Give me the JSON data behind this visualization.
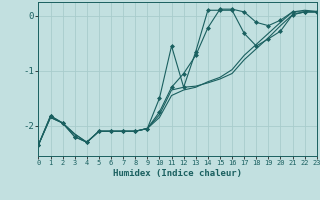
{
  "xlabel": "Humidex (Indice chaleur)",
  "background_color": "#c2e0e0",
  "grid_color": "#a8cccc",
  "line_color": "#1a6060",
  "xlim": [
    0,
    23
  ],
  "ylim": [
    -2.55,
    0.25
  ],
  "yticks": [
    0,
    -1,
    -2
  ],
  "xticks": [
    0,
    1,
    2,
    3,
    4,
    5,
    6,
    7,
    8,
    9,
    10,
    11,
    12,
    13,
    14,
    15,
    16,
    17,
    18,
    19,
    20,
    21,
    22,
    23
  ],
  "lines": [
    {
      "x": [
        0,
        1,
        2,
        3,
        4,
        5,
        6,
        7,
        8,
        9,
        10,
        11,
        12,
        13,
        14,
        15,
        16,
        17,
        18,
        19,
        20,
        21,
        22,
        23
      ],
      "y": [
        -2.35,
        -1.85,
        -1.95,
        -2.15,
        -2.3,
        -2.1,
        -2.1,
        -2.1,
        -2.1,
        -2.05,
        -1.8,
        -1.35,
        -1.3,
        -1.28,
        -1.22,
        -1.15,
        -1.05,
        -0.8,
        -0.6,
        -0.4,
        -0.18,
        0.02,
        0.07,
        0.07
      ],
      "marker": false
    },
    {
      "x": [
        0,
        1,
        2,
        3,
        4,
        5,
        6,
        7,
        8,
        9,
        10,
        11,
        12,
        13,
        14,
        15,
        16,
        17,
        18,
        19,
        20,
        21,
        22,
        23
      ],
      "y": [
        -2.35,
        -1.85,
        -1.95,
        -2.15,
        -2.3,
        -2.1,
        -2.1,
        -2.1,
        -2.1,
        -2.05,
        -1.85,
        -1.45,
        -1.35,
        -1.3,
        -1.2,
        -1.12,
        -0.98,
        -0.72,
        -0.52,
        -0.32,
        -0.12,
        0.07,
        0.1,
        0.08
      ],
      "marker": false
    },
    {
      "x": [
        0,
        1,
        2,
        3,
        4,
        5,
        6,
        7,
        8,
        9,
        10,
        11,
        12,
        13,
        14,
        15,
        16,
        17,
        18,
        19,
        20,
        21,
        22,
        23
      ],
      "y": [
        -2.35,
        -1.82,
        -1.95,
        -2.2,
        -2.3,
        -2.1,
        -2.1,
        -2.1,
        -2.1,
        -2.05,
        -1.5,
        -0.55,
        -1.3,
        -0.65,
        0.1,
        0.1,
        0.1,
        -0.32,
        -0.55,
        -0.42,
        -0.28,
        0.02,
        0.07,
        0.07
      ],
      "marker": true
    },
    {
      "x": [
        0,
        1,
        2,
        3,
        4,
        5,
        6,
        7,
        8,
        9,
        10,
        11,
        12,
        13,
        14,
        15,
        16,
        17,
        18,
        19,
        20,
        21,
        22,
        23
      ],
      "y": [
        -2.35,
        -1.82,
        -1.95,
        -2.2,
        -2.3,
        -2.1,
        -2.1,
        -2.1,
        -2.1,
        -2.05,
        -1.75,
        -1.3,
        -1.05,
        -0.72,
        -0.22,
        0.12,
        0.12,
        0.07,
        -0.12,
        -0.18,
        -0.08,
        0.07,
        0.07,
        0.07
      ],
      "marker": true
    }
  ]
}
